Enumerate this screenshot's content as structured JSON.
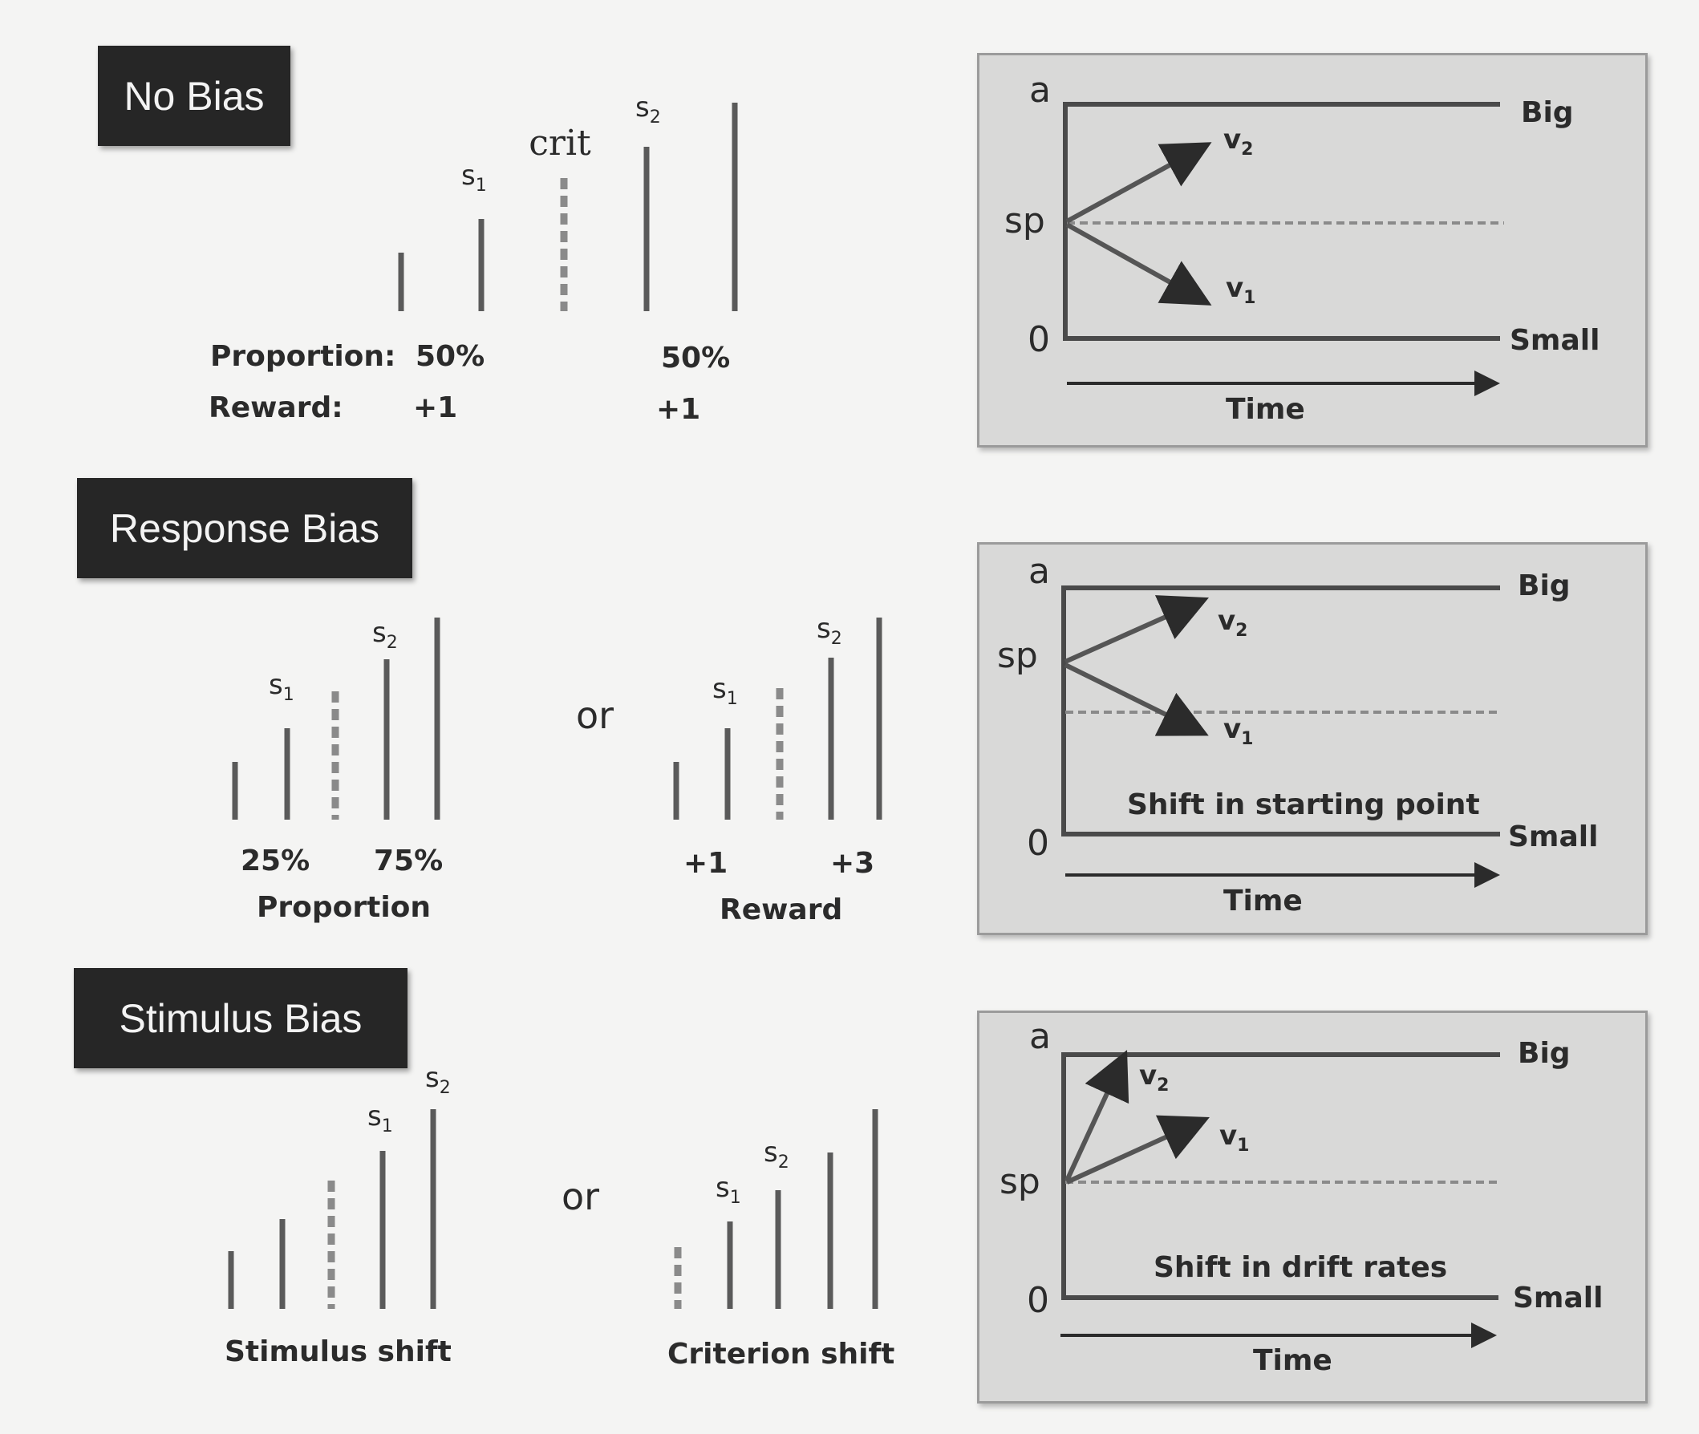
{
  "sections": {
    "no_bias": {
      "title": "No Bias",
      "crit_label": "crit",
      "s1": "s",
      "s1_sub": "1",
      "s2": "s",
      "s2_sub": "2",
      "proportion_label": "Proportion:",
      "reward_label": "Reward:",
      "prop_left": "50%",
      "prop_right": "50%",
      "reward_left": "+1",
      "reward_right": "+1"
    },
    "response_bias": {
      "title": "Response Bias",
      "or_label": "or",
      "prop_left": "25%",
      "prop_right": "75%",
      "prop_caption": "Proportion",
      "reward_left": "+1",
      "reward_right": "+3",
      "reward_caption": "Reward"
    },
    "stimulus_bias": {
      "title": "Stimulus Bias",
      "or_label": "or",
      "stim_caption": "Stimulus shift",
      "crit_caption": "Criterion shift"
    }
  },
  "subscript": {
    "sym": "s",
    "one": "1",
    "two": "2"
  },
  "panels": {
    "axis": {
      "a": "a",
      "sp": "sp",
      "zero": "0",
      "big": "Big",
      "small": "Small",
      "time": "Time"
    },
    "v": {
      "sym": "v",
      "one": "1",
      "two": "2"
    },
    "panel2_note": "Shift in starting point",
    "panel3_note": "Shift in drift rates"
  },
  "colors": {
    "bar": "#5a5a5a",
    "dashed": "#8a8a8a",
    "panel_bg": "#d9d9d8",
    "title_bg": "#262626"
  }
}
